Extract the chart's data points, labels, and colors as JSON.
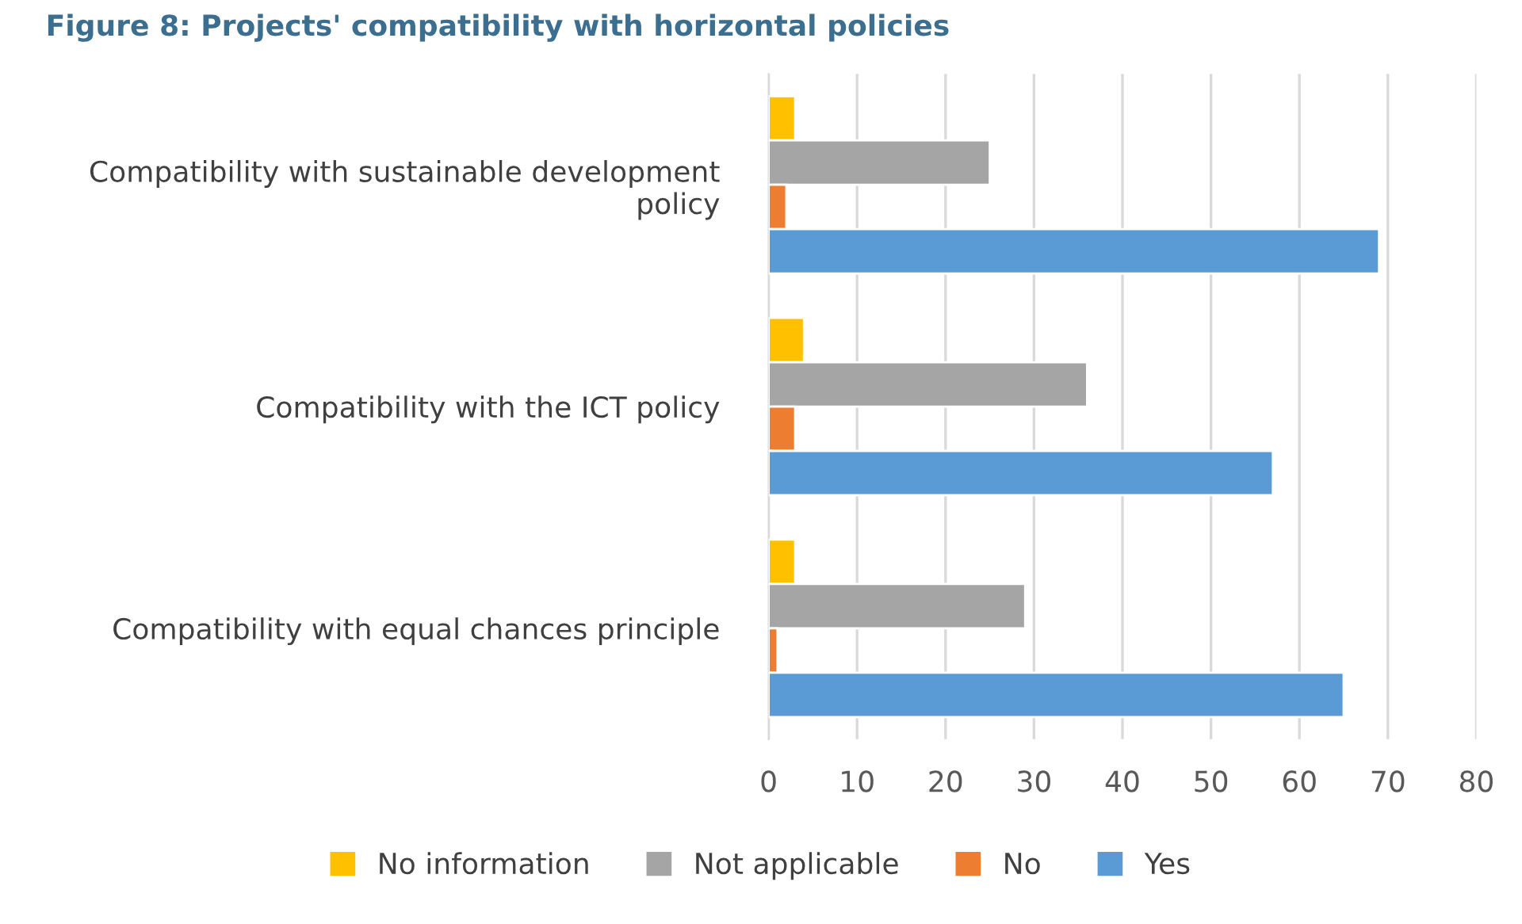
{
  "chart_data": {
    "type": "bar",
    "orientation": "horizontal",
    "title": "Figure 8: Projects' compatibility with horizontal policies",
    "categories": [
      "Compatibility with sustainable development\npolicy",
      "Compatibility with the ICT policy",
      "Compatibility with equal chances principle"
    ],
    "series": [
      {
        "name": "No information",
        "color": "#ffc000",
        "values": [
          3,
          4,
          3
        ]
      },
      {
        "name": "Not applicable",
        "color": "#a5a5a5",
        "values": [
          25,
          36,
          29
        ]
      },
      {
        "name": "No",
        "color": "#ed7d31",
        "values": [
          2,
          3,
          1
        ]
      },
      {
        "name": "Yes",
        "color": "#5b9bd5",
        "values": [
          69,
          57,
          65
        ]
      }
    ],
    "xlim": [
      0,
      80
    ],
    "xticks": [
      0,
      10,
      20,
      30,
      40,
      50,
      60,
      70,
      80
    ],
    "grid": "x",
    "legend": "bottom"
  }
}
